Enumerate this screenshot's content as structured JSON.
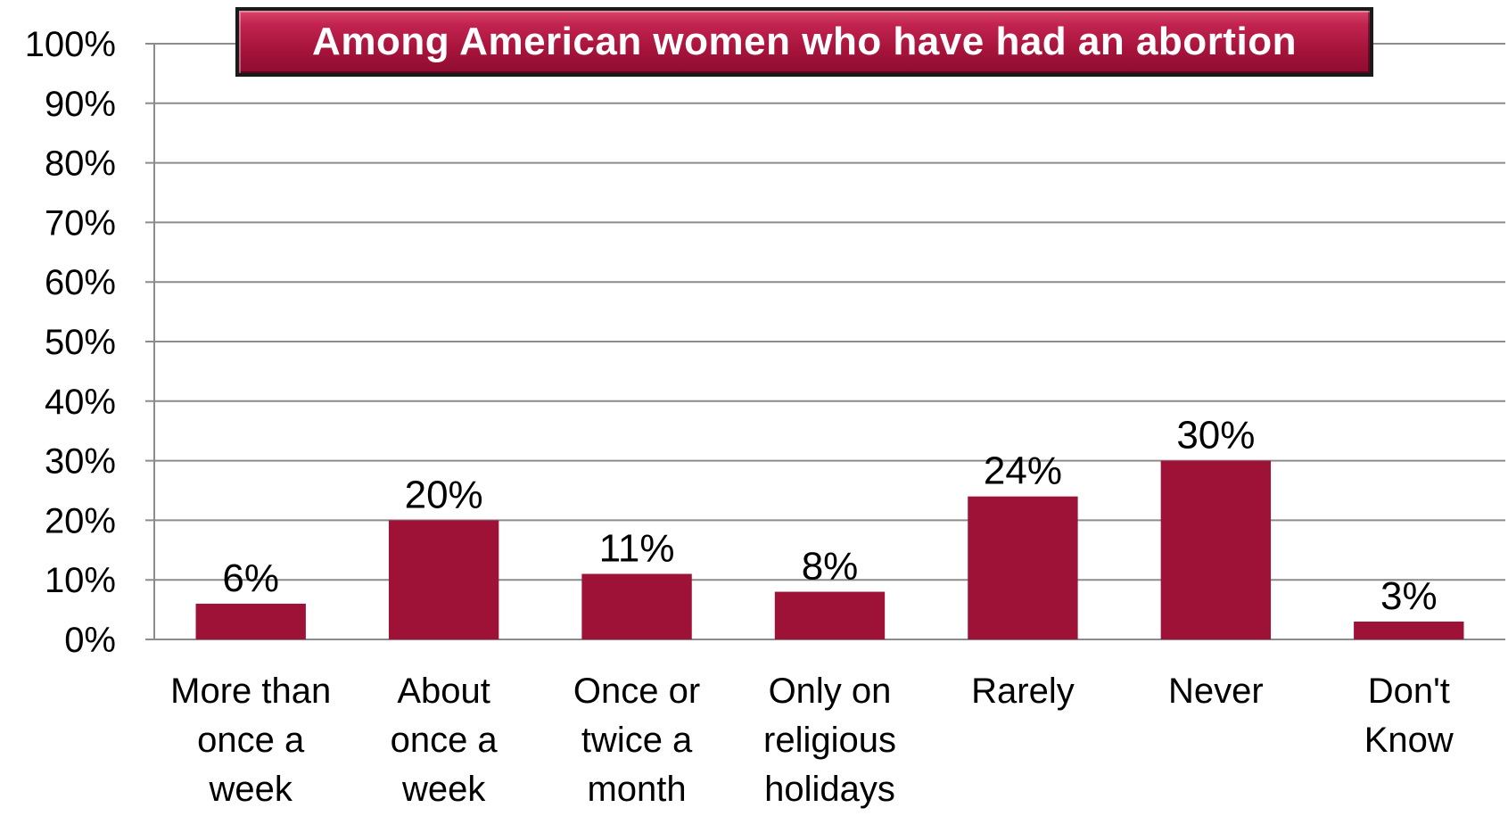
{
  "chart_data": {
    "type": "bar",
    "title": "Among American women who have had an abortion",
    "categories": [
      [
        "More than",
        "once a",
        "week"
      ],
      [
        "About",
        "once a",
        "week"
      ],
      [
        "Once or",
        "twice a",
        "month"
      ],
      [
        "Only on",
        "religious",
        "holidays"
      ],
      [
        "Rarely"
      ],
      [
        "Never"
      ],
      [
        "Don't",
        "Know"
      ]
    ],
    "values": [
      6,
      20,
      11,
      8,
      24,
      30,
      3
    ],
    "data_labels": [
      "6%",
      "20%",
      "11%",
      "8%",
      "24%",
      "30%",
      "3%"
    ],
    "ylim": [
      0,
      100
    ],
    "yticks": [
      0,
      10,
      20,
      30,
      40,
      50,
      60,
      70,
      80,
      90,
      100
    ],
    "ytick_labels": [
      "0%",
      "10%",
      "20%",
      "30%",
      "40%",
      "50%",
      "60%",
      "70%",
      "80%",
      "90%",
      "100%"
    ],
    "grid": true,
    "bar_color": "#9e1237",
    "grid_color": "#8c8c8c",
    "title_bg_color": "#b3163f",
    "title_text_color": "#ffffff"
  }
}
